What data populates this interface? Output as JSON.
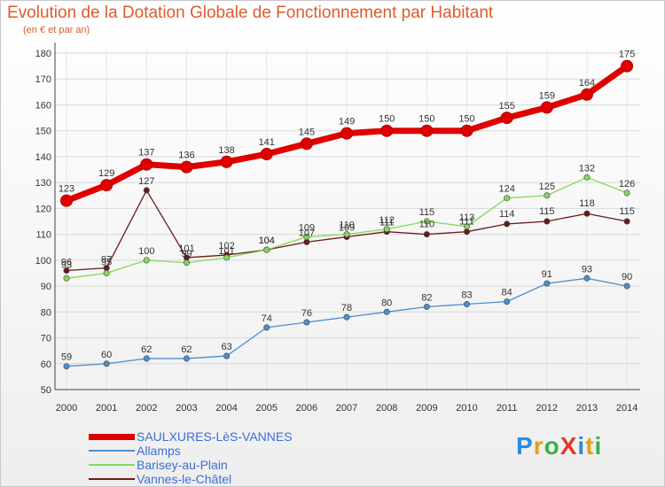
{
  "header": {
    "title": "Evolution de la Dotation Globale de Fonctionnement par Habitant",
    "subtitle": "(en € et par an)"
  },
  "logo": {
    "text": "ProXiti"
  },
  "chart_data": {
    "type": "line",
    "title": "Evolution de la Dotation Globale de Fonctionnement par Habitant",
    "subtitle": "(en € et par an)",
    "xlabel": "",
    "ylabel": "",
    "ylim": [
      50,
      180
    ],
    "yticks": [
      50,
      60,
      70,
      80,
      90,
      100,
      110,
      120,
      130,
      140,
      150,
      160,
      170,
      180
    ],
    "grid": true,
    "legend_position": "bottom-left",
    "categories": [
      "2000",
      "2001",
      "2002",
      "2003",
      "2004",
      "2005",
      "2006",
      "2007",
      "2008",
      "2009",
      "2010",
      "2011",
      "2012",
      "2013",
      "2014"
    ],
    "series": [
      {
        "name": "SAULXURES-LèS-VANNES",
        "color": "#e00000",
        "values": [
          123,
          129,
          137,
          136,
          138,
          141,
          145,
          149,
          150,
          150,
          150,
          155,
          159,
          164,
          175
        ]
      },
      {
        "name": "Allamps",
        "color": "#4b8fd0",
        "values": [
          59,
          60,
          62,
          62,
          63,
          74,
          76,
          78,
          80,
          82,
          83,
          84,
          91,
          93,
          90
        ]
      },
      {
        "name": "Barisey-au-Plain",
        "color": "#86d75a",
        "values": [
          93,
          95,
          100,
          99,
          101,
          104,
          109,
          110,
          112,
          115,
          113,
          124,
          125,
          132,
          126
        ]
      },
      {
        "name": "Vannes-le-Châtel",
        "color": "#6b1a1a",
        "values": [
          96,
          97,
          127,
          101,
          102,
          104,
          107,
          109,
          111,
          110,
          111,
          114,
          115,
          118,
          115
        ]
      }
    ]
  }
}
